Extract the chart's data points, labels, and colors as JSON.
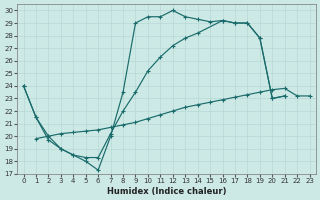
{
  "xlabel": "Humidex (Indice chaleur)",
  "xlim": [
    -0.5,
    23.5
  ],
  "ylim": [
    17,
    30.5
  ],
  "yticks": [
    17,
    18,
    19,
    20,
    21,
    22,
    23,
    24,
    25,
    26,
    27,
    28,
    29,
    30
  ],
  "xticks": [
    0,
    1,
    2,
    3,
    4,
    5,
    6,
    7,
    8,
    9,
    10,
    11,
    12,
    13,
    14,
    15,
    16,
    17,
    18,
    19,
    20,
    21,
    22,
    23
  ],
  "bg_color": "#cce9e6",
  "grid_color": "#b8d8d5",
  "line_color": "#1a6b6b",
  "curve1_x": [
    0,
    1,
    2,
    3,
    4,
    5,
    6,
    7,
    8,
    9,
    10,
    11,
    12,
    13,
    14,
    15,
    16,
    17,
    18,
    19,
    20,
    21
  ],
  "curve1_y": [
    24.0,
    21.5,
    19.7,
    19.0,
    18.5,
    18.0,
    17.3,
    20.0,
    23.5,
    29.0,
    29.5,
    29.5,
    30.0,
    29.5,
    29.3,
    29.1,
    29.2,
    29.0,
    29.0,
    27.8,
    23.0,
    23.2
  ],
  "curve2_x": [
    0,
    1,
    2,
    3,
    4,
    5,
    6,
    7,
    8,
    9,
    10,
    11,
    12,
    13,
    14,
    16,
    17,
    18,
    19,
    20,
    21
  ],
  "curve2_y": [
    24.0,
    21.5,
    20.0,
    19.0,
    18.5,
    18.3,
    18.3,
    20.2,
    22.0,
    23.5,
    25.2,
    26.3,
    27.2,
    27.8,
    28.2,
    29.2,
    29.0,
    29.0,
    27.8,
    23.0,
    23.2
  ],
  "curve3_x": [
    1,
    2,
    3,
    4,
    5,
    6,
    7,
    8,
    9,
    10,
    11,
    12,
    13,
    14,
    15,
    16,
    17,
    18,
    19,
    20,
    21,
    22,
    23
  ],
  "curve3_y": [
    19.8,
    20.0,
    20.2,
    20.3,
    20.4,
    20.5,
    20.7,
    20.9,
    21.1,
    21.4,
    21.7,
    22.0,
    22.3,
    22.5,
    22.7,
    22.9,
    23.1,
    23.3,
    23.5,
    23.7,
    23.8,
    23.2,
    23.2
  ]
}
